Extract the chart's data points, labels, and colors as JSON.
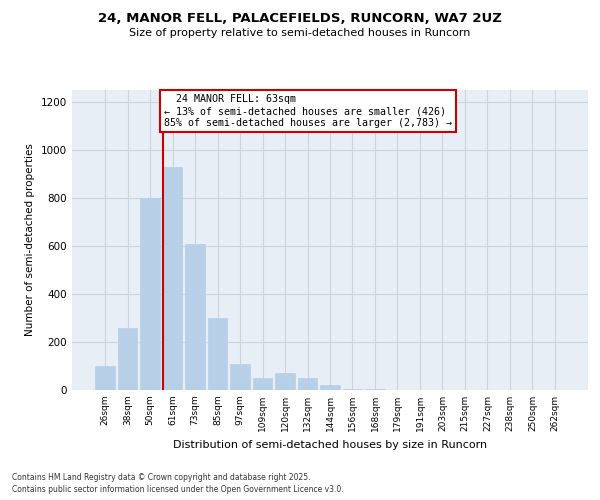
{
  "title1": "24, MANOR FELL, PALACEFIELDS, RUNCORN, WA7 2UZ",
  "title2": "Size of property relative to semi-detached houses in Runcorn",
  "xlabel": "Distribution of semi-detached houses by size in Runcorn",
  "ylabel": "Number of semi-detached properties",
  "property_label": "24 MANOR FELL: 63sqm",
  "pct_smaller": 13,
  "pct_larger": 85,
  "n_smaller": 426,
  "n_larger": 2783,
  "categories": [
    "26sqm",
    "38sqm",
    "50sqm",
    "61sqm",
    "73sqm",
    "85sqm",
    "97sqm",
    "109sqm",
    "120sqm",
    "132sqm",
    "144sqm",
    "156sqm",
    "168sqm",
    "179sqm",
    "191sqm",
    "203sqm",
    "215sqm",
    "227sqm",
    "238sqm",
    "250sqm",
    "262sqm"
  ],
  "values": [
    100,
    260,
    800,
    930,
    610,
    300,
    110,
    50,
    70,
    50,
    20,
    5,
    3,
    2,
    2,
    2,
    2,
    2,
    2,
    2,
    2
  ],
  "bar_color": "#b8cfe8",
  "vline_color": "#cc0000",
  "vline_x_index": 3,
  "annotation_box_edgecolor": "#cc0000",
  "background_color": "#ffffff",
  "plot_bg_color": "#e8eef5",
  "grid_color": "#c8d4e0",
  "ylim_max": 1250,
  "yticks": [
    0,
    200,
    400,
    600,
    800,
    1000,
    1200
  ],
  "footnote1": "Contains HM Land Registry data © Crown copyright and database right 2025.",
  "footnote2": "Contains public sector information licensed under the Open Government Licence v3.0."
}
